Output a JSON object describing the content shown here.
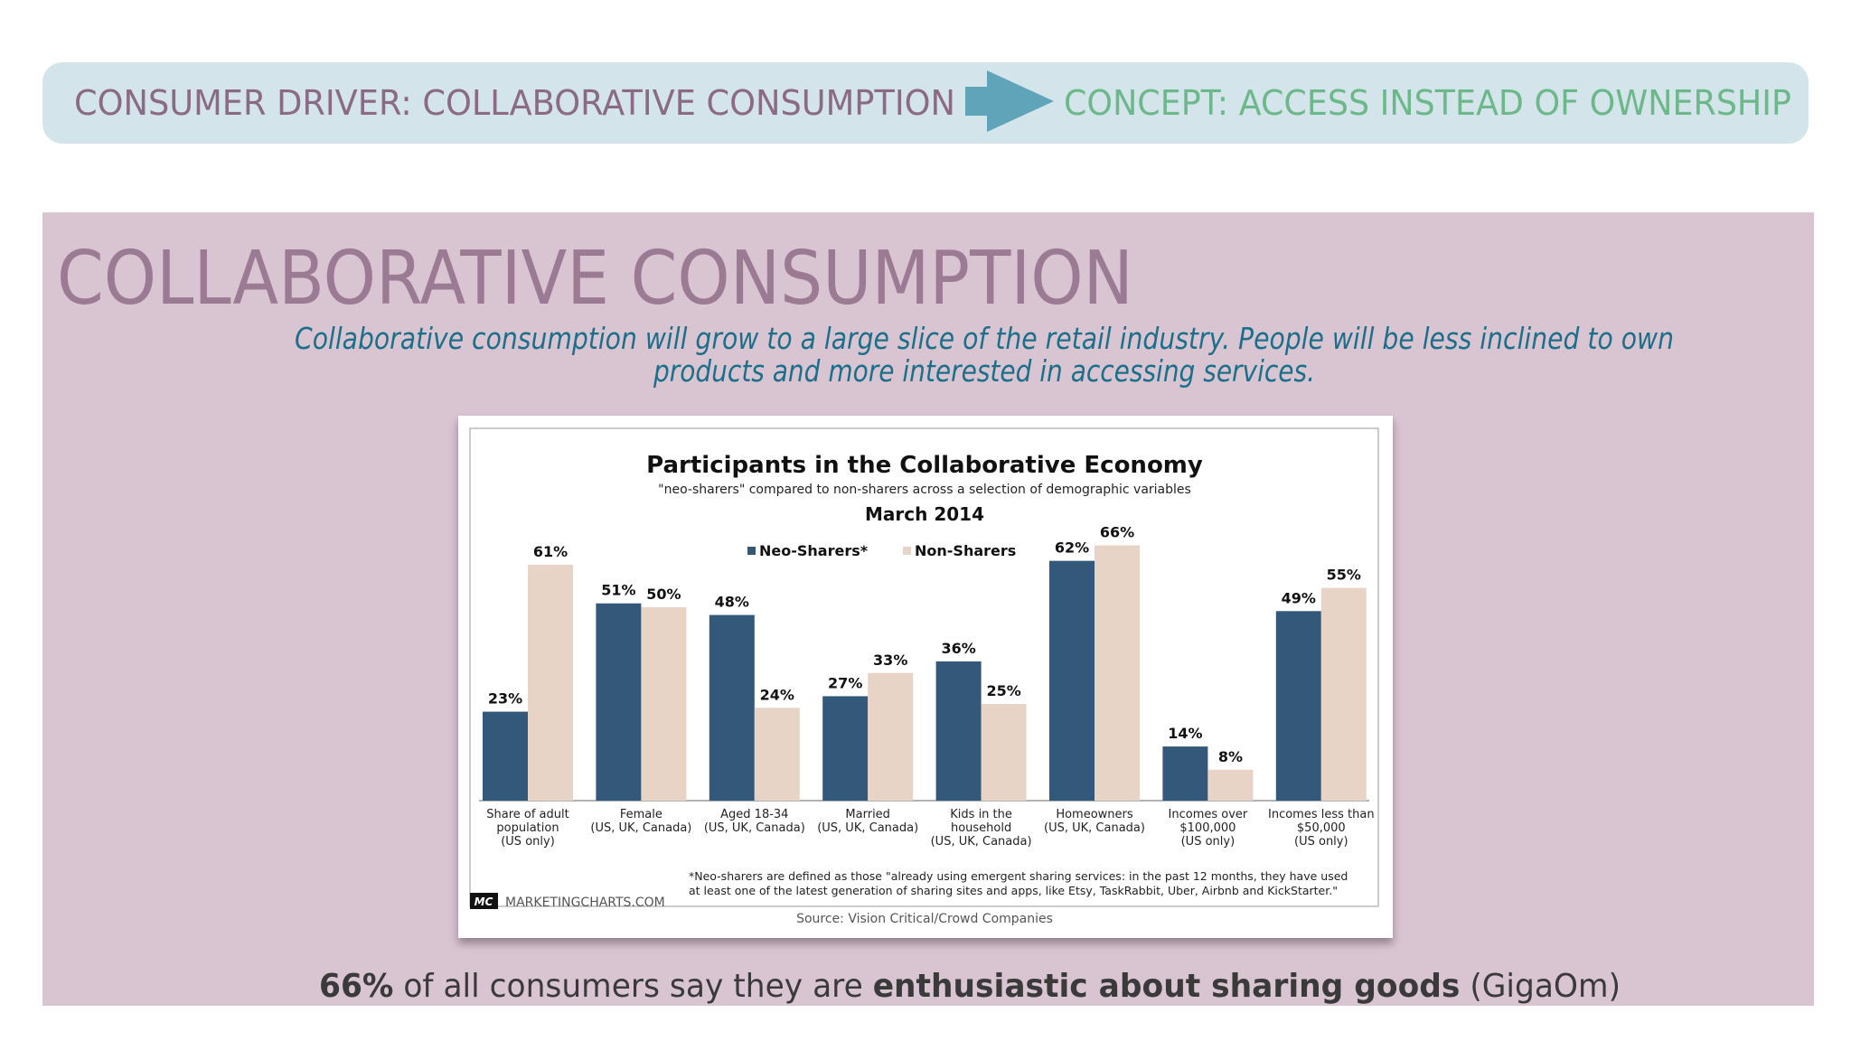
{
  "header": {
    "driver": "CONSUMER DRIVER: COLLABORATIVE CONSUMPTION",
    "concept": "CONCEPT: ACCESS INSTEAD OF OWNERSHIP"
  },
  "slide": {
    "title": "COLLABORATIVE CONSUMPTION",
    "subtitle_lines": [
      "Collaborative consumption will grow to a large slice of the retail industry. People will be less inclined to own",
      "products and more interested in accessing services."
    ],
    "footer_parts": [
      "66%",
      " of all consumers say they are ",
      "enthusiastic about sharing goods",
      " (GigaOm)"
    ]
  },
  "chart_data": {
    "type": "bar",
    "title": "Participants in the Collaborative Economy",
    "subtitle": "\"neo-sharers\" compared to non-sharers across a selection of demographic variables",
    "date": "March 2014",
    "categories": [
      "Share of adult\npopulation\n(US only)",
      "Female\n(US, UK, Canada)",
      "Aged 18-34\n(US, UK, Canada)",
      "Married\n(US, UK, Canada)",
      "Kids in the\nhousehold\n(US, UK, Canada)",
      "Homeowners\n(US, UK, Canada)",
      "Incomes over\n$100,000\n(US only)",
      "Incomes less than\n$50,000\n(US only)"
    ],
    "series": [
      {
        "name": "Neo-Sharers*",
        "color": "#34587a",
        "values": [
          23,
          51,
          48,
          27,
          36,
          62,
          14,
          49
        ],
        "value_labels": [
          "23%",
          "51%",
          "48%",
          "27%",
          "36%",
          "62%",
          "14%",
          "49%"
        ]
      },
      {
        "name": "Non-Sharers",
        "color": "#e8d3c7",
        "values": [
          61,
          50,
          24,
          33,
          25,
          66,
          8,
          55
        ],
        "value_labels": [
          "61%",
          "50%",
          "24%",
          "33%",
          "25%",
          "66%",
          "8%",
          "55%"
        ]
      }
    ],
    "footnote": "*Neo-sharers are defined as those \"already using emergent sharing services: in the past 12 months, they have used\nat least one of the latest generation of sharing sites and apps, like Etsy, TaskRabbit, Uber, Airbnb and KickStarter.\"",
    "logo": "MC",
    "brand": "MARKETINGCHARTS.COM",
    "source": "Source: Vision Critical/Crowd Companies"
  }
}
